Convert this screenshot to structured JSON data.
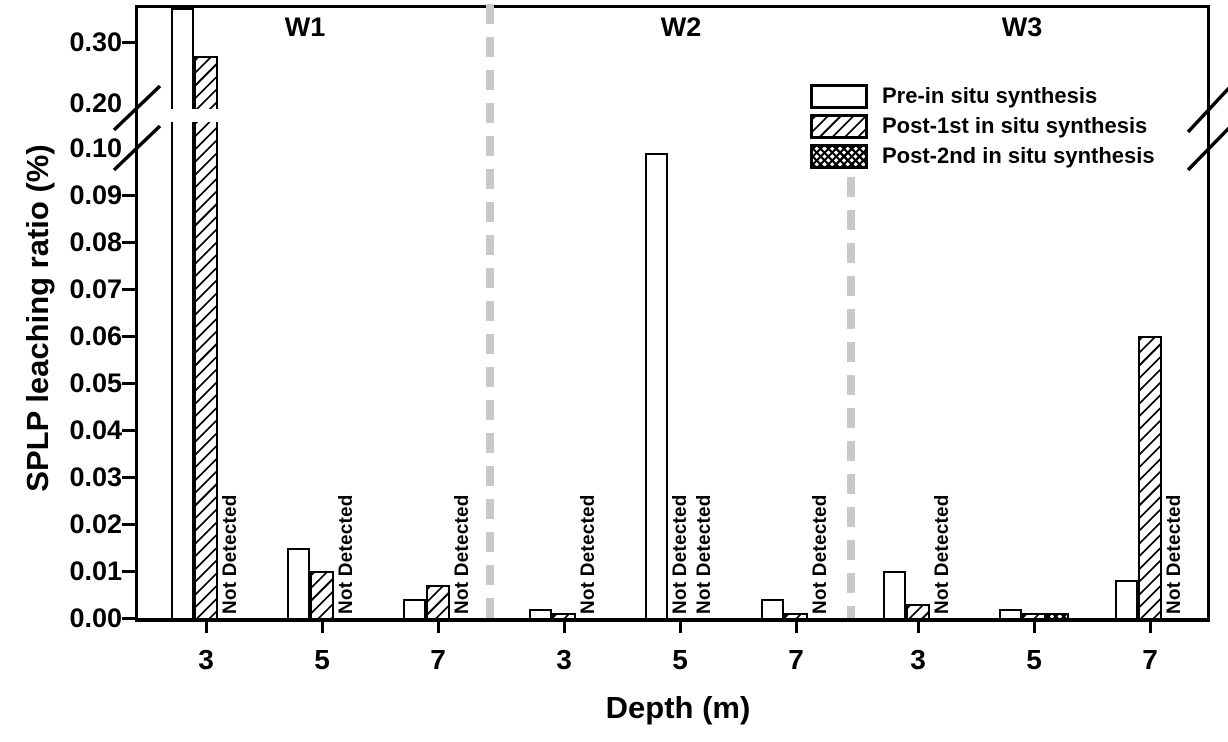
{
  "chart_data": {
    "type": "bar",
    "title": "",
    "ylabel": "SPLP leaching ratio (%)",
    "xlabel": "Depth (m)",
    "not_detected_label": "Not Detected",
    "grid": false,
    "legend_position": "top-right-inside",
    "y_axis": {
      "unit": "%",
      "broken_axis": true,
      "break_between": [
        "0.10",
        "0.20"
      ],
      "lower_range": [
        0.0,
        0.1
      ],
      "upper_range_shown": [
        0.2,
        0.3
      ],
      "ticks": [
        {
          "label": "0.00",
          "v": 0.0
        },
        {
          "label": "0.01",
          "v": 0.01
        },
        {
          "label": "0.02",
          "v": 0.02
        },
        {
          "label": "0.03",
          "v": 0.03
        },
        {
          "label": "0.04",
          "v": 0.04
        },
        {
          "label": "0.05",
          "v": 0.05
        },
        {
          "label": "0.06",
          "v": 0.06
        },
        {
          "label": "0.07",
          "v": 0.07
        },
        {
          "label": "0.08",
          "v": 0.08
        },
        {
          "label": "0.09",
          "v": 0.09
        },
        {
          "label": "0.10",
          "v": 0.1
        },
        {
          "label": "0.20",
          "v": 0.2
        },
        {
          "label": "0.30",
          "v": 0.3
        }
      ]
    },
    "series": [
      {
        "name": "Pre-in situ synthesis",
        "pattern": "solid-white"
      },
      {
        "name": "Post-1st in situ synthesis",
        "pattern": "diagonal-hatch"
      },
      {
        "name": "Post-2nd in situ synthesis",
        "pattern": "crosshatch"
      }
    ],
    "groups": [
      {
        "label": "W1",
        "depths": [
          {
            "depth": "3",
            "values": [
              0.355,
              0.277,
              "ND"
            ]
          },
          {
            "depth": "5",
            "values": [
              0.015,
              0.01,
              "ND"
            ]
          },
          {
            "depth": "7",
            "values": [
              0.004,
              0.007,
              "ND"
            ]
          }
        ]
      },
      {
        "label": "W2",
        "depths": [
          {
            "depth": "3",
            "values": [
              0.002,
              0.001,
              "ND"
            ]
          },
          {
            "depth": "5",
            "values": [
              0.099,
              "ND",
              "ND"
            ]
          },
          {
            "depth": "7",
            "values": [
              0.004,
              0.001,
              "ND"
            ]
          }
        ]
      },
      {
        "label": "W3",
        "depths": [
          {
            "depth": "3",
            "values": [
              0.01,
              0.003,
              "ND"
            ]
          },
          {
            "depth": "5",
            "values": [
              0.002,
              0.001,
              0.001
            ]
          },
          {
            "depth": "7",
            "values": [
              0.008,
              0.06,
              "ND"
            ]
          }
        ]
      }
    ]
  }
}
